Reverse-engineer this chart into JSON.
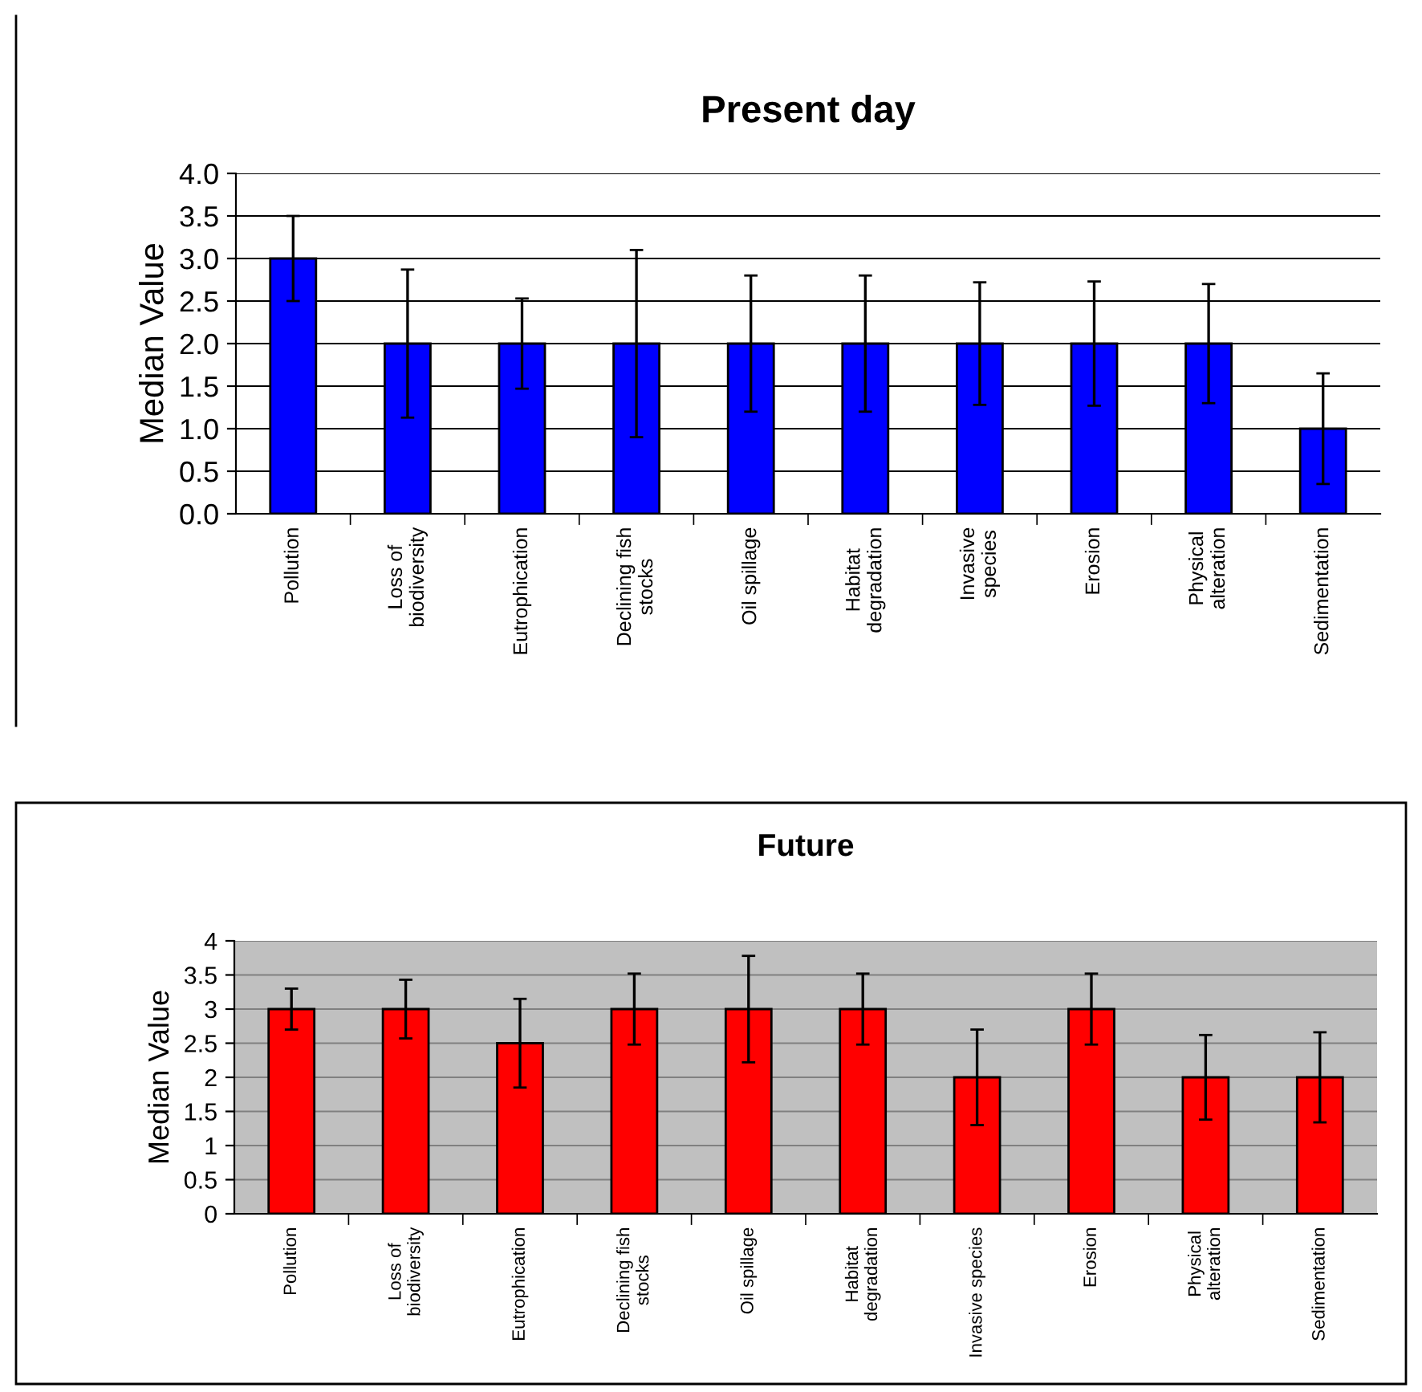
{
  "chart_data": [
    {
      "type": "bar",
      "title": "Present day",
      "ylabel": "Median Value",
      "categories": [
        "Pollution",
        "Loss of\nbiodiversity",
        "Eutrophication",
        "Declining fish\nstocks",
        "Oil spillage",
        "Habitat\ndegradation",
        "Invasive\nspecies",
        "Erosion",
        "Physical\nalteration",
        "Sedimentation"
      ],
      "values": [
        3,
        2,
        2,
        2,
        2,
        2,
        2,
        2,
        2,
        1
      ],
      "errors": [
        0.5,
        0.87,
        0.53,
        1.1,
        0.8,
        0.8,
        0.72,
        0.73,
        0.7,
        0.65
      ],
      "color": "#0000ff",
      "ylim": [
        0,
        4
      ],
      "yticks": [
        {
          "value": 0,
          "label": "0.0"
        },
        {
          "value": 0.5,
          "label": "0.5"
        },
        {
          "value": 1,
          "label": "1.0"
        },
        {
          "value": 1.5,
          "label": "1.5"
        },
        {
          "value": 2,
          "label": "2.0"
        },
        {
          "value": 2.5,
          "label": "2.5"
        },
        {
          "value": 3,
          "label": "3.0"
        },
        {
          "value": 3.5,
          "label": "3.5"
        },
        {
          "value": 4,
          "label": "4.0"
        }
      ],
      "grid": "y"
    },
    {
      "type": "bar",
      "title": "Future",
      "ylabel": "Median Value",
      "categories": [
        "Pollution",
        "Loss of\nbiodiversity",
        "Eutrophication",
        "Declining fish\nstocks",
        "Oil spillage",
        "Habitat\ndegradation",
        "Invasive species",
        "Erosion",
        "Physical\nalteration",
        "Sedimentation"
      ],
      "values": [
        3,
        3,
        2.5,
        3,
        3,
        3,
        2,
        3,
        2,
        2
      ],
      "errors": [
        0.3,
        0.43,
        0.65,
        0.52,
        0.78,
        0.52,
        0.7,
        0.52,
        0.62,
        0.66
      ],
      "color": "#ff0000",
      "ylim": [
        0,
        4
      ],
      "yticks": [
        0,
        0.5,
        1,
        1.5,
        2,
        2.5,
        3,
        3.5,
        4
      ],
      "grid": "y"
    }
  ]
}
